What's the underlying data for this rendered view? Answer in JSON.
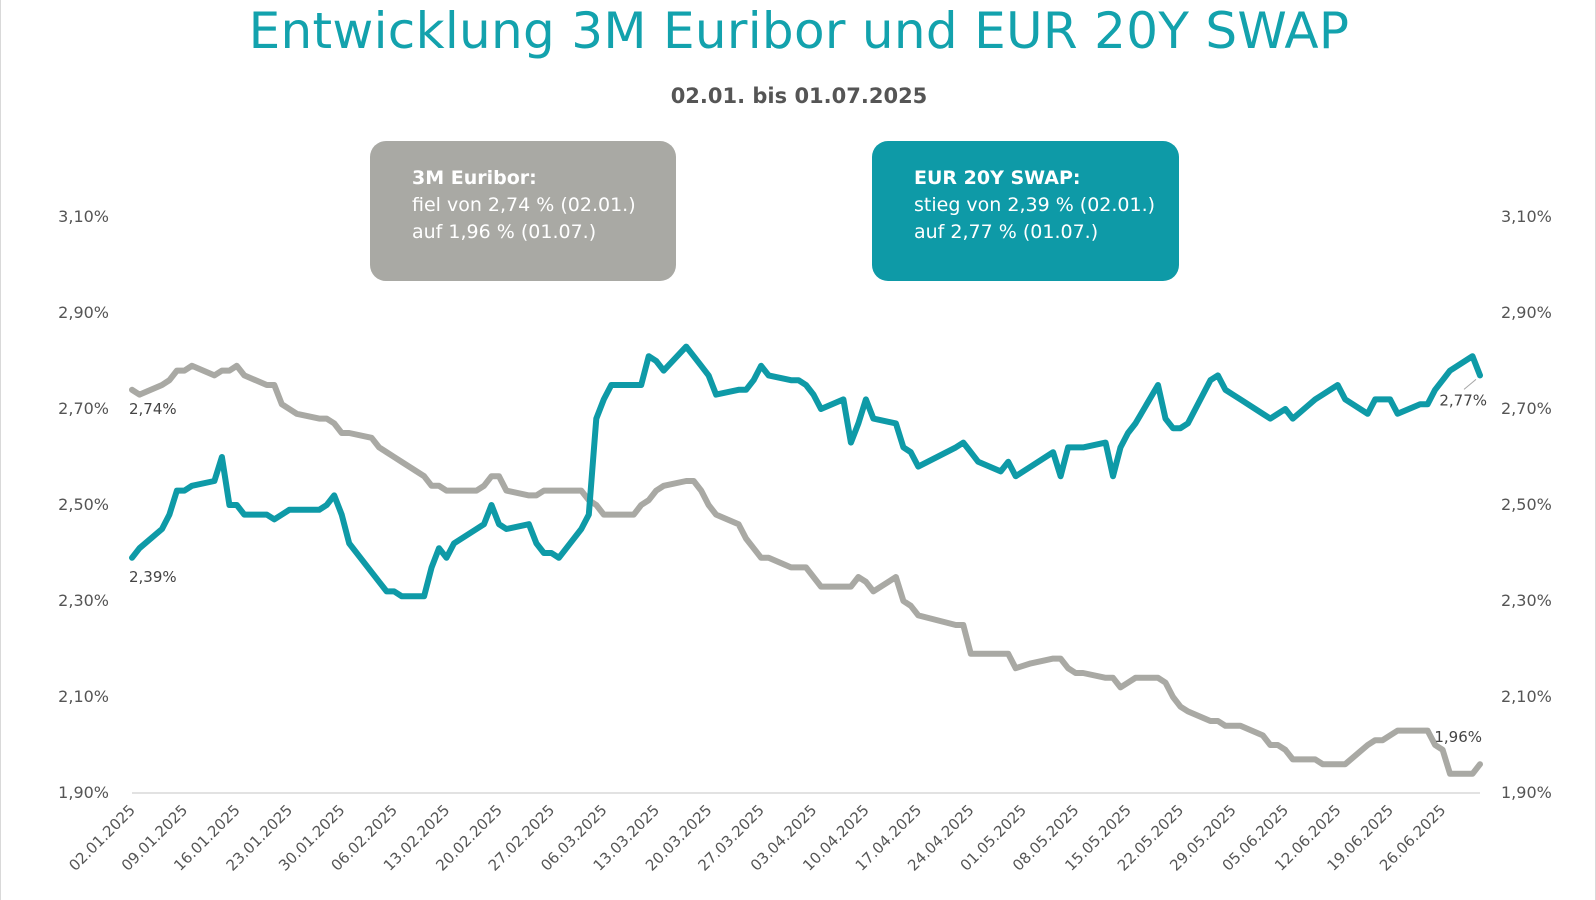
{
  "title": "Entwicklung 3M Euribor und EUR 20Y SWAP",
  "subtitle": "02.01. bis 01.07.2025",
  "boxes": {
    "euribor": {
      "title": "3M Euribor:",
      "line1": "fiel von 2,74 % (02.01.)",
      "line2": "auf 1,96 % (01.07.)"
    },
    "swap": {
      "title": "EUR 20Y SWAP:",
      "line1": "stieg von 2,39 % (02.01.)",
      "line2": "auf 2,77 % (01.07.)"
    }
  },
  "colors": {
    "title": "#13a2ad",
    "euribor": "#a9a9a4",
    "swap": "#0e9aa7",
    "axis": "#d9d9d9"
  },
  "chart_data": {
    "type": "line",
    "ylim": [
      1.9,
      3.1
    ],
    "y_ticks": [
      {
        "value": 3.1,
        "label": "3,10%"
      },
      {
        "value": 2.9,
        "label": "2,90%"
      },
      {
        "value": 2.7,
        "label": "2,70%"
      },
      {
        "value": 2.5,
        "label": "2,50%"
      },
      {
        "value": 2.3,
        "label": "2,30%"
      },
      {
        "value": 2.1,
        "label": "2,10%"
      },
      {
        "value": 1.9,
        "label": "1,90%"
      }
    ],
    "x_range": [
      "2025-01-02",
      "2025-07-01"
    ],
    "x_tick_labels": [
      "02.01.2025",
      "09.01.2025",
      "16.01.2025",
      "23.01.2025",
      "30.01.2025",
      "06.02.2025",
      "13.02.2025",
      "20.02.2025",
      "27.02.2025",
      "06.03.2025",
      "13.03.2025",
      "20.03.2025",
      "27.03.2025",
      "03.04.2025",
      "10.04.2025",
      "17.04.2025",
      "24.04.2025",
      "01.05.2025",
      "08.05.2025",
      "15.05.2025",
      "22.05.2025",
      "29.05.2025",
      "05.06.2025",
      "12.06.2025",
      "19.06.2025",
      "26.06.2025"
    ],
    "grid": false,
    "annotations": [
      {
        "text": "2,74%",
        "series": "3M Euribor",
        "at": "start"
      },
      {
        "text": "2,39%",
        "series": "EUR 20Y SWAP",
        "at": "start"
      },
      {
        "text": "2,77%",
        "series": "EUR 20Y SWAP",
        "at": "end"
      },
      {
        "text": "1,96%",
        "series": "3M Euribor",
        "at": "end"
      }
    ],
    "series": [
      {
        "name": "3M Euribor",
        "color": "#a9a9a4",
        "points": [
          [
            "2025-01-02",
            2.74
          ],
          [
            "2025-01-03",
            2.73
          ],
          [
            "2025-01-06",
            2.75
          ],
          [
            "2025-01-07",
            2.76
          ],
          [
            "2025-01-08",
            2.78
          ],
          [
            "2025-01-09",
            2.78
          ],
          [
            "2025-01-10",
            2.79
          ],
          [
            "2025-01-13",
            2.77
          ],
          [
            "2025-01-14",
            2.78
          ],
          [
            "2025-01-15",
            2.78
          ],
          [
            "2025-01-16",
            2.79
          ],
          [
            "2025-01-17",
            2.77
          ],
          [
            "2025-01-20",
            2.75
          ],
          [
            "2025-01-21",
            2.75
          ],
          [
            "2025-01-22",
            2.71
          ],
          [
            "2025-01-23",
            2.7
          ],
          [
            "2025-01-24",
            2.69
          ],
          [
            "2025-01-27",
            2.68
          ],
          [
            "2025-01-28",
            2.68
          ],
          [
            "2025-01-29",
            2.67
          ],
          [
            "2025-01-30",
            2.65
          ],
          [
            "2025-01-31",
            2.65
          ],
          [
            "2025-02-03",
            2.64
          ],
          [
            "2025-02-04",
            2.62
          ],
          [
            "2025-02-05",
            2.61
          ],
          [
            "2025-02-06",
            2.6
          ],
          [
            "2025-02-07",
            2.59
          ],
          [
            "2025-02-10",
            2.56
          ],
          [
            "2025-02-11",
            2.54
          ],
          [
            "2025-02-12",
            2.54
          ],
          [
            "2025-02-13",
            2.53
          ],
          [
            "2025-02-14",
            2.53
          ],
          [
            "2025-02-17",
            2.53
          ],
          [
            "2025-02-18",
            2.54
          ],
          [
            "2025-02-19",
            2.56
          ],
          [
            "2025-02-20",
            2.56
          ],
          [
            "2025-02-21",
            2.53
          ],
          [
            "2025-02-24",
            2.52
          ],
          [
            "2025-02-25",
            2.52
          ],
          [
            "2025-02-26",
            2.53
          ],
          [
            "2025-02-27",
            2.53
          ],
          [
            "2025-02-28",
            2.53
          ],
          [
            "2025-03-03",
            2.53
          ],
          [
            "2025-03-04",
            2.51
          ],
          [
            "2025-03-05",
            2.5
          ],
          [
            "2025-03-06",
            2.48
          ],
          [
            "2025-03-07",
            2.48
          ],
          [
            "2025-03-10",
            2.48
          ],
          [
            "2025-03-11",
            2.5
          ],
          [
            "2025-03-12",
            2.51
          ],
          [
            "2025-03-13",
            2.53
          ],
          [
            "2025-03-14",
            2.54
          ],
          [
            "2025-03-17",
            2.55
          ],
          [
            "2025-03-18",
            2.55
          ],
          [
            "2025-03-19",
            2.53
          ],
          [
            "2025-03-20",
            2.5
          ],
          [
            "2025-03-21",
            2.48
          ],
          [
            "2025-03-24",
            2.46
          ],
          [
            "2025-03-25",
            2.43
          ],
          [
            "2025-03-26",
            2.41
          ],
          [
            "2025-03-27",
            2.39
          ],
          [
            "2025-03-28",
            2.39
          ],
          [
            "2025-03-31",
            2.37
          ],
          [
            "2025-04-01",
            2.37
          ],
          [
            "2025-04-02",
            2.37
          ],
          [
            "2025-04-03",
            2.35
          ],
          [
            "2025-04-04",
            2.33
          ],
          [
            "2025-04-07",
            2.33
          ],
          [
            "2025-04-08",
            2.33
          ],
          [
            "2025-04-09",
            2.35
          ],
          [
            "2025-04-10",
            2.34
          ],
          [
            "2025-04-11",
            2.32
          ],
          [
            "2025-04-14",
            2.35
          ],
          [
            "2025-04-15",
            2.3
          ],
          [
            "2025-04-16",
            2.29
          ],
          [
            "2025-04-17",
            2.27
          ],
          [
            "2025-04-22",
            2.25
          ],
          [
            "2025-04-23",
            2.25
          ],
          [
            "2025-04-24",
            2.19
          ],
          [
            "2025-04-25",
            2.19
          ],
          [
            "2025-04-28",
            2.19
          ],
          [
            "2025-04-29",
            2.19
          ],
          [
            "2025-04-30",
            2.16
          ],
          [
            "2025-05-02",
            2.17
          ],
          [
            "2025-05-05",
            2.18
          ],
          [
            "2025-05-06",
            2.18
          ],
          [
            "2025-05-07",
            2.16
          ],
          [
            "2025-05-08",
            2.15
          ],
          [
            "2025-05-09",
            2.15
          ],
          [
            "2025-05-12",
            2.14
          ],
          [
            "2025-05-13",
            2.14
          ],
          [
            "2025-05-14",
            2.12
          ],
          [
            "2025-05-15",
            2.13
          ],
          [
            "2025-05-16",
            2.14
          ],
          [
            "2025-05-19",
            2.14
          ],
          [
            "2025-05-20",
            2.13
          ],
          [
            "2025-05-21",
            2.1
          ],
          [
            "2025-05-22",
            2.08
          ],
          [
            "2025-05-23",
            2.07
          ],
          [
            "2025-05-26",
            2.05
          ],
          [
            "2025-05-27",
            2.05
          ],
          [
            "2025-05-28",
            2.04
          ],
          [
            "2025-05-29",
            2.04
          ],
          [
            "2025-05-30",
            2.04
          ],
          [
            "2025-06-02",
            2.02
          ],
          [
            "2025-06-03",
            2.0
          ],
          [
            "2025-06-04",
            2.0
          ],
          [
            "2025-06-05",
            1.99
          ],
          [
            "2025-06-06",
            1.97
          ],
          [
            "2025-06-09",
            1.97
          ],
          [
            "2025-06-10",
            1.96
          ],
          [
            "2025-06-11",
            1.96
          ],
          [
            "2025-06-12",
            1.96
          ],
          [
            "2025-06-13",
            1.96
          ],
          [
            "2025-06-16",
            2.0
          ],
          [
            "2025-06-17",
            2.01
          ],
          [
            "2025-06-18",
            2.01
          ],
          [
            "2025-06-19",
            2.02
          ],
          [
            "2025-06-20",
            2.03
          ],
          [
            "2025-06-23",
            2.03
          ],
          [
            "2025-06-24",
            2.03
          ],
          [
            "2025-06-25",
            2.0
          ],
          [
            "2025-06-26",
            1.99
          ],
          [
            "2025-06-27",
            1.94
          ],
          [
            "2025-06-30",
            1.94
          ],
          [
            "2025-07-01",
            1.96
          ]
        ]
      },
      {
        "name": "EUR 20Y SWAP",
        "color": "#0e9aa7",
        "points": [
          [
            "2025-01-02",
            2.39
          ],
          [
            "2025-01-03",
            2.41
          ],
          [
            "2025-01-06",
            2.45
          ],
          [
            "2025-01-07",
            2.48
          ],
          [
            "2025-01-08",
            2.53
          ],
          [
            "2025-01-09",
            2.53
          ],
          [
            "2025-01-10",
            2.54
          ],
          [
            "2025-01-13",
            2.55
          ],
          [
            "2025-01-14",
            2.6
          ],
          [
            "2025-01-15",
            2.5
          ],
          [
            "2025-01-16",
            2.5
          ],
          [
            "2025-01-17",
            2.48
          ],
          [
            "2025-01-20",
            2.48
          ],
          [
            "2025-01-21",
            2.47
          ],
          [
            "2025-01-22",
            2.48
          ],
          [
            "2025-01-23",
            2.49
          ],
          [
            "2025-01-24",
            2.49
          ],
          [
            "2025-01-27",
            2.49
          ],
          [
            "2025-01-28",
            2.5
          ],
          [
            "2025-01-29",
            2.52
          ],
          [
            "2025-01-30",
            2.48
          ],
          [
            "2025-01-31",
            2.42
          ],
          [
            "2025-02-03",
            2.36
          ],
          [
            "2025-02-04",
            2.34
          ],
          [
            "2025-02-05",
            2.32
          ],
          [
            "2025-02-06",
            2.32
          ],
          [
            "2025-02-07",
            2.31
          ],
          [
            "2025-02-10",
            2.31
          ],
          [
            "2025-02-11",
            2.37
          ],
          [
            "2025-02-12",
            2.41
          ],
          [
            "2025-02-13",
            2.39
          ],
          [
            "2025-02-14",
            2.42
          ],
          [
            "2025-02-17",
            2.45
          ],
          [
            "2025-02-18",
            2.46
          ],
          [
            "2025-02-19",
            2.5
          ],
          [
            "2025-02-20",
            2.46
          ],
          [
            "2025-02-21",
            2.45
          ],
          [
            "2025-02-24",
            2.46
          ],
          [
            "2025-02-25",
            2.42
          ],
          [
            "2025-02-26",
            2.4
          ],
          [
            "2025-02-27",
            2.4
          ],
          [
            "2025-02-28",
            2.39
          ],
          [
            "2025-03-03",
            2.45
          ],
          [
            "2025-03-04",
            2.48
          ],
          [
            "2025-03-05",
            2.68
          ],
          [
            "2025-03-06",
            2.72
          ],
          [
            "2025-03-07",
            2.75
          ],
          [
            "2025-03-10",
            2.75
          ],
          [
            "2025-03-11",
            2.75
          ],
          [
            "2025-03-12",
            2.81
          ],
          [
            "2025-03-13",
            2.8
          ],
          [
            "2025-03-14",
            2.78
          ],
          [
            "2025-03-17",
            2.83
          ],
          [
            "2025-03-18",
            2.81
          ],
          [
            "2025-03-19",
            2.79
          ],
          [
            "2025-03-20",
            2.77
          ],
          [
            "2025-03-21",
            2.73
          ],
          [
            "2025-03-24",
            2.74
          ],
          [
            "2025-03-25",
            2.74
          ],
          [
            "2025-03-26",
            2.76
          ],
          [
            "2025-03-27",
            2.79
          ],
          [
            "2025-03-28",
            2.77
          ],
          [
            "2025-03-31",
            2.76
          ],
          [
            "2025-04-01",
            2.76
          ],
          [
            "2025-04-02",
            2.75
          ],
          [
            "2025-04-03",
            2.73
          ],
          [
            "2025-04-04",
            2.7
          ],
          [
            "2025-04-07",
            2.72
          ],
          [
            "2025-04-08",
            2.63
          ],
          [
            "2025-04-09",
            2.67
          ],
          [
            "2025-04-10",
            2.72
          ],
          [
            "2025-04-11",
            2.68
          ],
          [
            "2025-04-14",
            2.67
          ],
          [
            "2025-04-15",
            2.62
          ],
          [
            "2025-04-16",
            2.61
          ],
          [
            "2025-04-17",
            2.58
          ],
          [
            "2025-04-22",
            2.62
          ],
          [
            "2025-04-23",
            2.63
          ],
          [
            "2025-04-24",
            2.61
          ],
          [
            "2025-04-25",
            2.59
          ],
          [
            "2025-04-28",
            2.57
          ],
          [
            "2025-04-29",
            2.59
          ],
          [
            "2025-04-30",
            2.56
          ],
          [
            "2025-05-02",
            2.58
          ],
          [
            "2025-05-05",
            2.61
          ],
          [
            "2025-05-06",
            2.56
          ],
          [
            "2025-05-07",
            2.62
          ],
          [
            "2025-05-08",
            2.62
          ],
          [
            "2025-05-09",
            2.62
          ],
          [
            "2025-05-12",
            2.63
          ],
          [
            "2025-05-13",
            2.56
          ],
          [
            "2025-05-14",
            2.62
          ],
          [
            "2025-05-15",
            2.65
          ],
          [
            "2025-05-16",
            2.67
          ],
          [
            "2025-05-19",
            2.75
          ],
          [
            "2025-05-20",
            2.68
          ],
          [
            "2025-05-21",
            2.66
          ],
          [
            "2025-05-22",
            2.66
          ],
          [
            "2025-05-23",
            2.67
          ],
          [
            "2025-05-26",
            2.76
          ],
          [
            "2025-05-27",
            2.77
          ],
          [
            "2025-05-28",
            2.74
          ],
          [
            "2025-05-29",
            2.73
          ],
          [
            "2025-05-30",
            2.72
          ],
          [
            "2025-06-02",
            2.69
          ],
          [
            "2025-06-03",
            2.68
          ],
          [
            "2025-06-04",
            2.69
          ],
          [
            "2025-06-05",
            2.7
          ],
          [
            "2025-06-06",
            2.68
          ],
          [
            "2025-06-09",
            2.72
          ],
          [
            "2025-06-10",
            2.73
          ],
          [
            "2025-06-11",
            2.74
          ],
          [
            "2025-06-12",
            2.75
          ],
          [
            "2025-06-13",
            2.72
          ],
          [
            "2025-06-16",
            2.69
          ],
          [
            "2025-06-17",
            2.72
          ],
          [
            "2025-06-18",
            2.72
          ],
          [
            "2025-06-19",
            2.72
          ],
          [
            "2025-06-20",
            2.69
          ],
          [
            "2025-06-23",
            2.71
          ],
          [
            "2025-06-24",
            2.71
          ],
          [
            "2025-06-25",
            2.74
          ],
          [
            "2025-06-26",
            2.76
          ],
          [
            "2025-06-27",
            2.78
          ],
          [
            "2025-06-30",
            2.81
          ],
          [
            "2025-07-01",
            2.77
          ]
        ]
      }
    ]
  }
}
